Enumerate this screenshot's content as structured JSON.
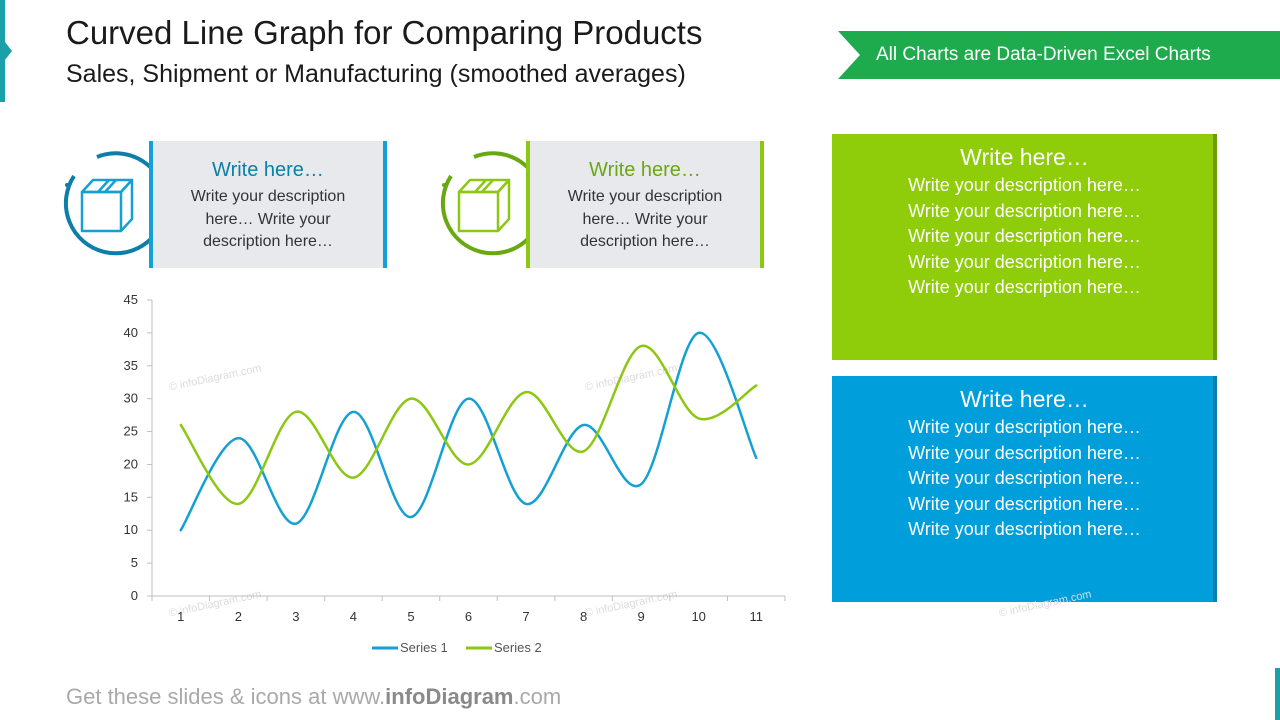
{
  "header": {
    "title": "Curved Line Graph for Comparing Products",
    "subtitle": "Sales, Shipment or Manufacturing (smoothed averages)"
  },
  "ribbon": {
    "label": "All Charts are Data-Driven Excel Charts",
    "color": "#1dab4e"
  },
  "callouts": [
    {
      "heading": "Write here…",
      "lines": [
        "Write your description",
        "here… Write your",
        "description here…"
      ],
      "color": "#0d7ea8",
      "icon": "box-icon"
    },
    {
      "heading": "Write here…",
      "lines": [
        "Write your description",
        "here… Write your",
        "description here…"
      ],
      "color": "#6aa812",
      "icon": "box-icon"
    }
  ],
  "panels": [
    {
      "heading": "Write here…",
      "lines": [
        "Write your description here…",
        "Write your description here…",
        "Write your description here…",
        "Write your description here…",
        "Write your description here…"
      ],
      "color": "#8fcc0a",
      "edge": "#6e9c08"
    },
    {
      "heading": "Write here…",
      "lines": [
        "Write your description here…",
        "Write your description here…",
        "Write your description here…",
        "Write your description here…",
        "Write your description here…"
      ],
      "color": "#009fdb",
      "edge": "#0a7fb0"
    }
  ],
  "footer": {
    "prefix": "Get these slides & icons at www.",
    "brand": "infoDiagram",
    "suffix": ".com"
  },
  "watermark": "© infoDiagram.com",
  "chart_data": {
    "type": "line",
    "x": [
      1,
      2,
      3,
      4,
      5,
      6,
      7,
      8,
      9,
      10,
      11
    ],
    "series": [
      {
        "name": "Series 1",
        "values": [
          10,
          24,
          11,
          28,
          12,
          30,
          14,
          26,
          17,
          40,
          21
        ],
        "color": "#14a0d4"
      },
      {
        "name": "Series 2",
        "values": [
          26,
          14,
          28,
          18,
          30,
          20,
          31,
          22,
          38,
          27,
          32
        ],
        "color": "#8cc712"
      }
    ],
    "ylim": [
      0,
      45
    ],
    "yticks": [
      0,
      5,
      10,
      15,
      20,
      25,
      30,
      35,
      40,
      45
    ],
    "smoothed": true,
    "grid": false,
    "legend": "bottom"
  }
}
